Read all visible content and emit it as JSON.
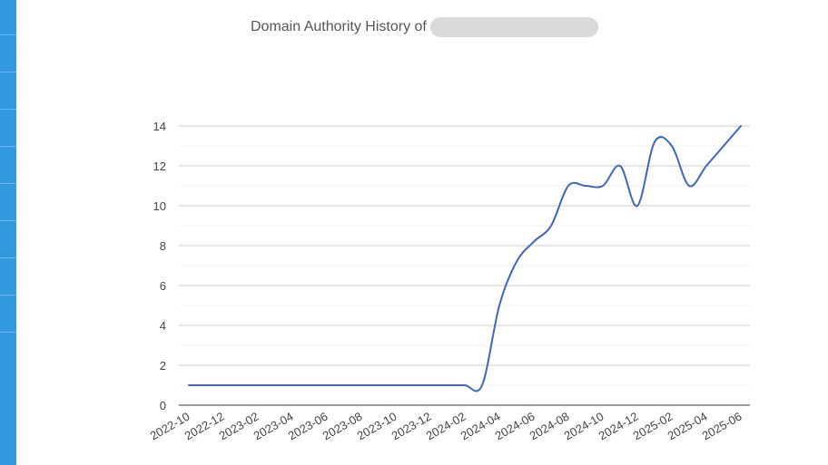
{
  "chart_data": {
    "type": "line",
    "title": "Domain Authority History of",
    "xlabel": "",
    "ylabel": "",
    "ylim": [
      0,
      14
    ],
    "yticks": [
      0,
      2,
      4,
      6,
      8,
      10,
      12,
      14
    ],
    "grid": true,
    "categories": [
      "2022-10",
      "2022-12",
      "2023-02",
      "2023-04",
      "2023-06",
      "2023-08",
      "2023-10",
      "2023-12",
      "2024-02",
      "2024-04",
      "2024-06",
      "2024-08",
      "2024-10",
      "2024-12",
      "2025-02",
      "2025-04",
      "2025-06"
    ],
    "series": [
      {
        "name": "",
        "color": "#3a67c2",
        "x": [
          "2022-10",
          "2022-11",
          "2022-12",
          "2023-01",
          "2023-02",
          "2023-03",
          "2023-04",
          "2023-05",
          "2023-06",
          "2023-07",
          "2023-08",
          "2023-09",
          "2023-10",
          "2023-11",
          "2023-12",
          "2024-01",
          "2024-02",
          "2024-03",
          "2024-04",
          "2024-05",
          "2024-06",
          "2024-07",
          "2024-08",
          "2024-09",
          "2024-10",
          "2024-11",
          "2024-12",
          "2025-01",
          "2025-02",
          "2025-03",
          "2025-04",
          "2025-05",
          "2025-06"
        ],
        "values": [
          1,
          1,
          1,
          1,
          1,
          1,
          1,
          1,
          1,
          1,
          1,
          1,
          1,
          1,
          1,
          1,
          1,
          1,
          5,
          7.2,
          8.2,
          9,
          11,
          11,
          11,
          12,
          10,
          13.2,
          13,
          11,
          12,
          13,
          14
        ]
      }
    ]
  }
}
